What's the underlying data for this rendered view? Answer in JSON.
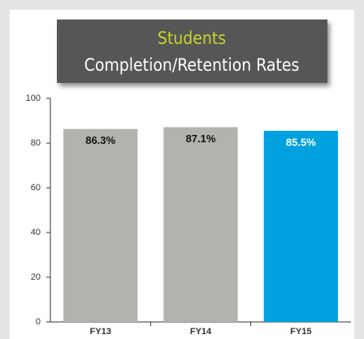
{
  "chart_data": {
    "type": "bar",
    "title": "Students",
    "subtitle": "Completion/Retention Rates",
    "categories": [
      "FY13",
      "FY14",
      "FY15"
    ],
    "values": [
      86.3,
      87.1,
      85.5
    ],
    "value_labels": [
      "86.3%",
      "87.1%",
      "85.5%"
    ],
    "colors": [
      "#b4b2af",
      "#b4b2af",
      "#00a1de"
    ],
    "ylim": [
      0,
      100
    ],
    "yticks": [
      0,
      20,
      40,
      60,
      80,
      100
    ],
    "grid": false
  }
}
